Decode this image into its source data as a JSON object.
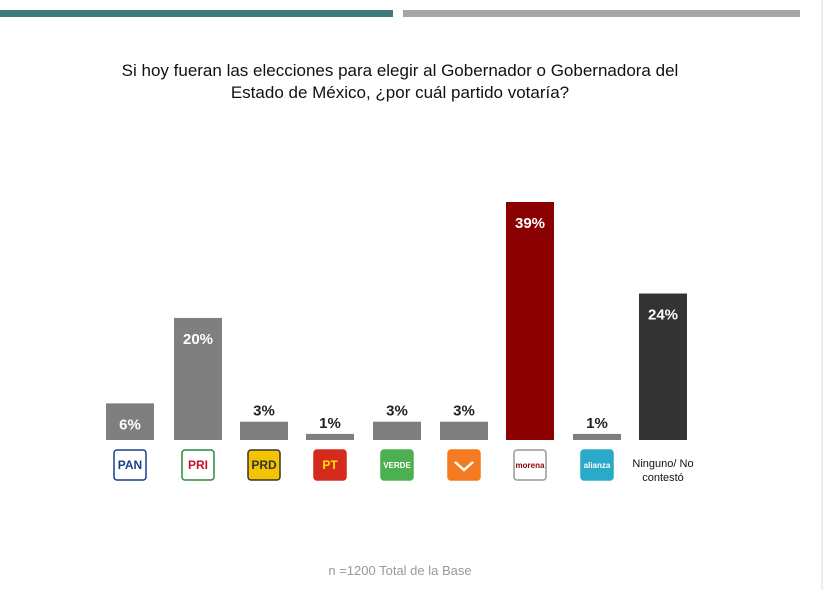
{
  "chart_data": {
    "type": "bar",
    "title": "Si hoy fueran las elecciones para elegir al Gobernador o Gobernadora del Estado de México,  ¿por cuál partido votaría?",
    "categories": [
      "PAN",
      "PRI",
      "PRD",
      "PT",
      "VERDE",
      null,
      "morena",
      "alianza",
      "Ninguno/ No contestó"
    ],
    "values": [
      6,
      20,
      3,
      1,
      3,
      3,
      39,
      1,
      24
    ],
    "value_labels": [
      "6%",
      "20%",
      "3%",
      "1%",
      "3%",
      "3%",
      "39%",
      "1%",
      "24%"
    ],
    "colors": [
      "#7f7f7f",
      "#7f7f7f",
      "#7f7f7f",
      "#7f7f7f",
      "#7f7f7f",
      "#7f7f7f",
      "#8b0000",
      "#7f7f7f",
      "#333333"
    ],
    "footnote": "n =1200 Total de la Base"
  }
}
